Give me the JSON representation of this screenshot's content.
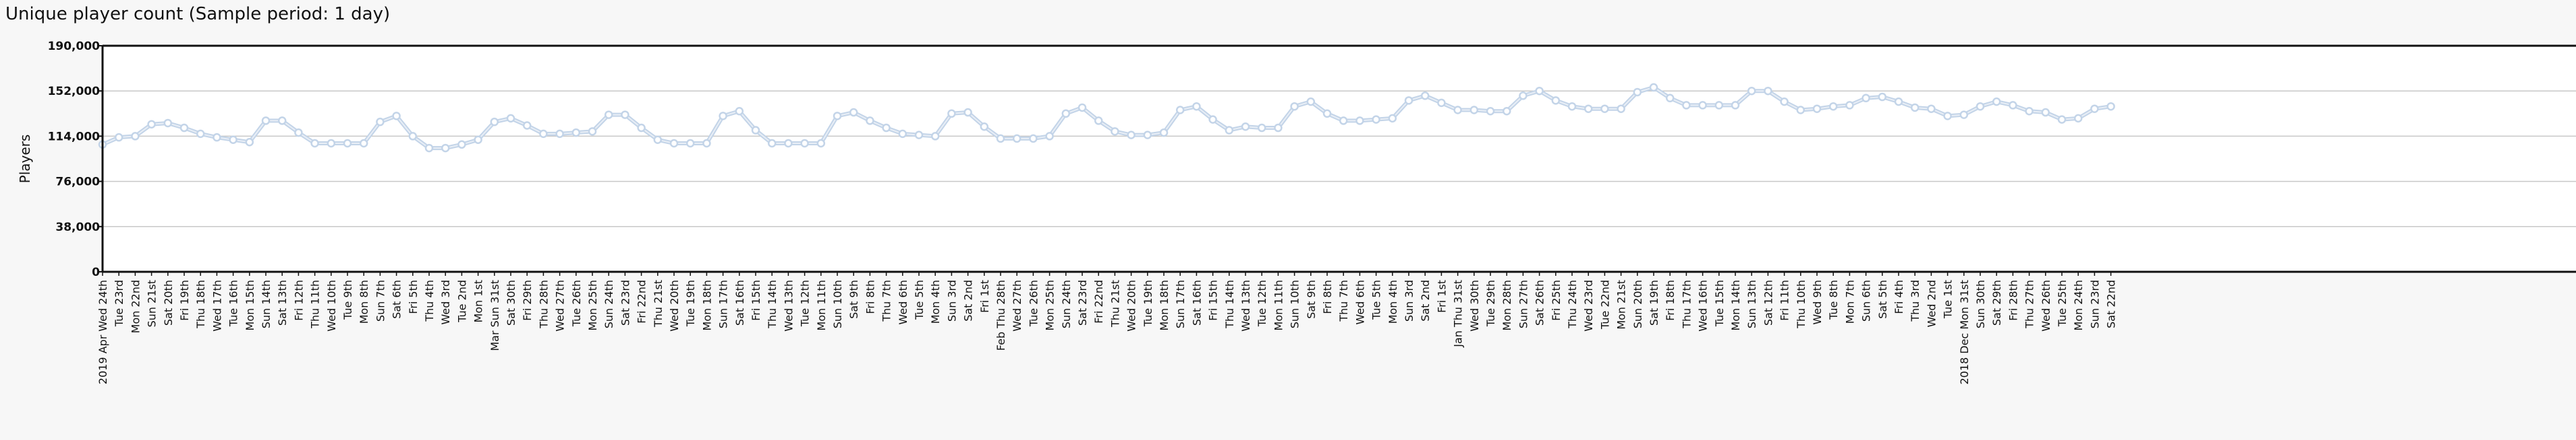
{
  "chart_data": {
    "type": "line",
    "title": "Unique player count (Sample period: 1 day)",
    "xlabel": "",
    "ylabel": "Players",
    "ylim": [
      0,
      190000
    ],
    "yticks": [
      "0",
      "38,000",
      "76,000",
      "114,000",
      "152,000",
      "190,000"
    ],
    "ytick_values": [
      0,
      38000,
      76000,
      114000,
      152000,
      190000
    ],
    "grid": true,
    "legend": "none",
    "colors": {
      "line": "#c3d4e8",
      "marker_fill": "#ffffff",
      "marker_stroke": "#c3d4e8",
      "grid": "#c8c8c8",
      "axis": "#111111"
    },
    "x_order": "descending (most recent date at left)",
    "x_labels": [
      "2019 Apr Wed 24th",
      "Tue 23rd",
      "Mon 22nd",
      "Sun 21st",
      "Sat 20th",
      "Fri 19th",
      "Thu 18th",
      "Wed 17th",
      "Tue 16th",
      "Mon 15th",
      "Sun 14th",
      "Sat 13th",
      "Fri 12th",
      "Thu 11th",
      "Wed 10th",
      "Tue 9th",
      "Mon 8th",
      "Sun 7th",
      "Sat 6th",
      "Fri 5th",
      "Thu 4th",
      "Wed 3rd",
      "Tue 2nd",
      "Mon 1st",
      "Mar Sun 31st",
      "Sat 30th",
      "Fri 29th",
      "Thu 28th",
      "Wed 27th",
      "Tue 26th",
      "Mon 25th",
      "Sun 24th",
      "Sat 23rd",
      "Fri 22nd",
      "Thu 21st",
      "Wed 20th",
      "Tue 19th",
      "Mon 18th",
      "Sun 17th",
      "Sat 16th",
      "Fri 15th",
      "Thu 14th",
      "Wed 13th",
      "Tue 12th",
      "Mon 11th",
      "Sun 10th",
      "Sat 9th",
      "Fri 8th",
      "Thu 7th",
      "Wed 6th",
      "Tue 5th",
      "Mon 4th",
      "Sun 3rd",
      "Sat 2nd",
      "Fri 1st",
      "Feb Thu 28th",
      "Wed 27th",
      "Tue 26th",
      "Mon 25th",
      "Sun 24th",
      "Sat 23rd",
      "Fri 22nd",
      "Thu 21st",
      "Wed 20th",
      "Tue 19th",
      "Mon 18th",
      "Sun 17th",
      "Sat 16th",
      "Fri 15th",
      "Thu 14th",
      "Wed 13th",
      "Tue 12th",
      "Mon 11th",
      "Sun 10th",
      "Sat 9th",
      "Fri 8th",
      "Thu 7th",
      "Wed 6th",
      "Tue 5th",
      "Mon 4th",
      "Sun 3rd",
      "Sat 2nd",
      "Fri 1st",
      "Jan Thu 31st",
      "Wed 30th",
      "Tue 29th",
      "Mon 28th",
      "Sun 27th",
      "Sat 26th",
      "Fri 25th",
      "Thu 24th",
      "Wed 23rd",
      "Tue 22nd",
      "Mon 21st",
      "Sun 20th",
      "Sat 19th",
      "Fri 18th",
      "Thu 17th",
      "Wed 16th",
      "Tue 15th",
      "Mon 14th",
      "Sun 13th",
      "Sat 12th",
      "Fri 11th",
      "Thu 10th",
      "Wed 9th",
      "Tue 8th",
      "Mon 7th",
      "Sun 6th",
      "Sat 5th",
      "Fri 4th",
      "Thu 3rd",
      "Wed 2nd",
      "Tue 1st",
      "2018 Dec Mon 31st",
      "Sun 30th",
      "Sat 29th",
      "Fri 28th",
      "Thu 27th",
      "Wed 26th",
      "Tue 25th",
      "Mon 24th",
      "Sun 23rd",
      "Sat 22nd"
    ],
    "values": [
      107000,
      113000,
      114000,
      124000,
      125000,
      121000,
      116000,
      113000,
      111000,
      109000,
      127000,
      127000,
      117000,
      108000,
      108000,
      108000,
      108000,
      126000,
      131000,
      114000,
      104000,
      104000,
      107000,
      111000,
      126000,
      129000,
      123000,
      116000,
      116000,
      117000,
      118000,
      132000,
      132000,
      121000,
      111000,
      108000,
      108000,
      108000,
      131000,
      135000,
      119000,
      108000,
      108000,
      108000,
      108000,
      131000,
      134000,
      127000,
      121000,
      116000,
      115000,
      114000,
      133000,
      134000,
      122000,
      112000,
      112000,
      112000,
      114000,
      133000,
      138000,
      127000,
      118000,
      115000,
      115000,
      117000,
      136000,
      139000,
      128000,
      119000,
      122000,
      121000,
      121000,
      139000,
      143000,
      133000,
      127000,
      127000,
      128000,
      129000,
      144000,
      148000,
      142000,
      136000,
      136000,
      135000,
      135000,
      148000,
      152000,
      144000,
      139000,
      137000,
      137000,
      137000,
      151000,
      155000,
      146000,
      140000,
      140000,
      140000,
      140000,
      152000,
      152000,
      143000,
      136000,
      137000,
      139000,
      140000,
      146000,
      147000,
      143000,
      138000,
      137000,
      131000,
      132000,
      139000,
      143000,
      140000,
      135000,
      134000,
      128000,
      129000,
      137000,
      139000
    ]
  }
}
